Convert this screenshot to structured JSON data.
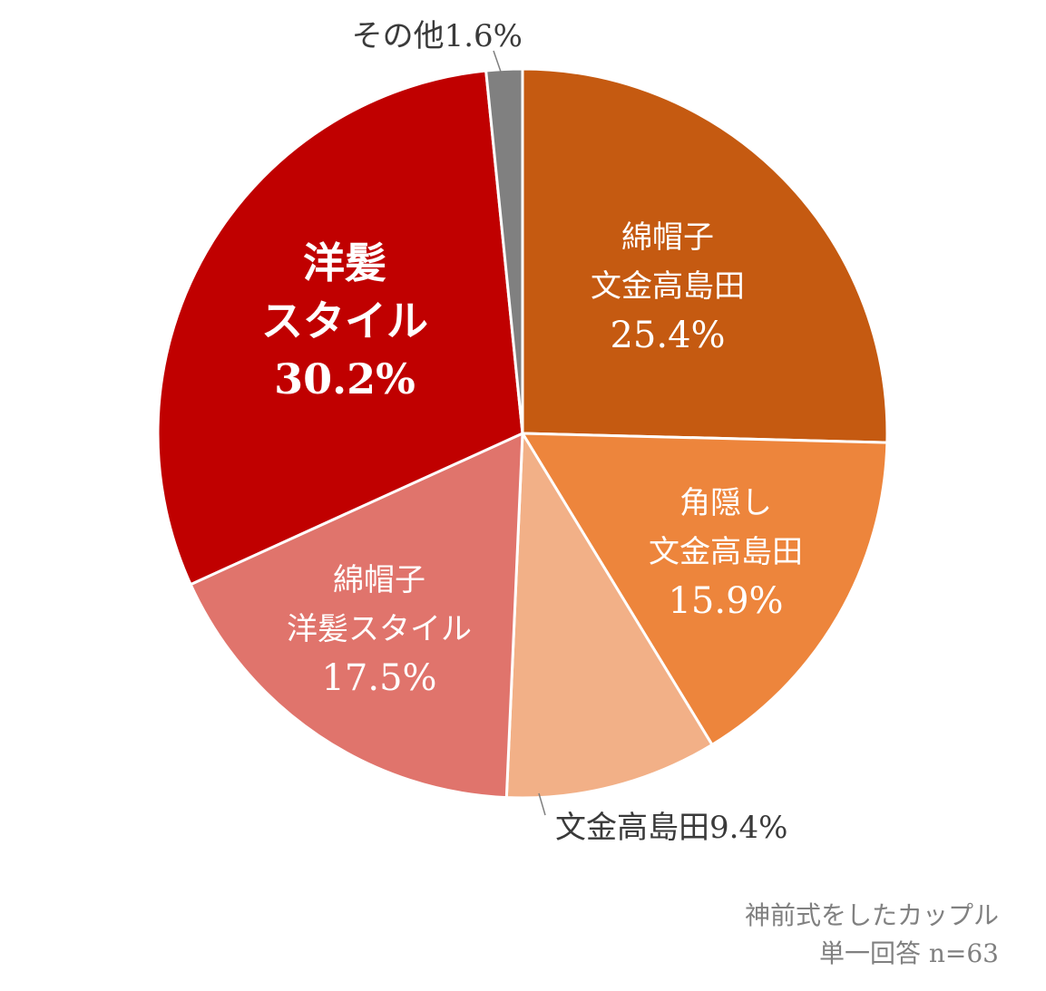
{
  "chart_data": {
    "type": "pie",
    "start_angle": "12 o'clock",
    "direction": "clockwise",
    "slices": [
      {
        "lines": [
          "綿帽子",
          "文金高島田"
        ],
        "percent_label": "25.4%",
        "value": 25.4,
        "color": "#C55A11",
        "label_position": "inside"
      },
      {
        "lines": [
          "角隠し",
          "文金高島田"
        ],
        "percent_label": "15.9%",
        "value": 15.9,
        "color": "#ED853C",
        "label_position": "inside"
      },
      {
        "lines": [
          "文金高島田"
        ],
        "percent_label": "9.4%",
        "value": 9.4,
        "color": "#F2B087",
        "label_position": "outside"
      },
      {
        "lines": [
          "綿帽子",
          "洋髪スタイル"
        ],
        "percent_label": "17.5%",
        "value": 17.5,
        "color": "#E0746C",
        "label_position": "inside"
      },
      {
        "lines": [
          "洋髪",
          "スタイル"
        ],
        "percent_label": "30.2%",
        "value": 30.2,
        "color": "#C00000",
        "label_position": "inside"
      },
      {
        "lines": [
          "その他"
        ],
        "percent_label": "1.6%",
        "value": 1.6,
        "color": "#808080",
        "label_position": "outside"
      }
    ],
    "slice_border_color": "#ffffff",
    "legend": "none"
  },
  "footnote": {
    "line1": "神前式をしたカップル",
    "line2": "単一回答 n=63"
  }
}
